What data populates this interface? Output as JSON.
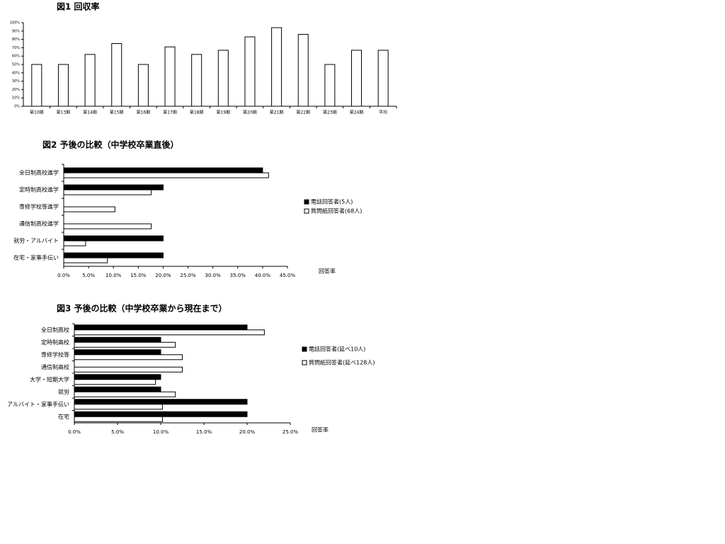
{
  "chart_data": [
    {
      "type": "bar",
      "title": "図1 回収率",
      "categories": [
        "第10期",
        "第13期",
        "第14期",
        "第15期",
        "第16期",
        "第17期",
        "第18期",
        "第19期",
        "第20期",
        "第21期",
        "第22期",
        "第23期",
        "第24期",
        "平均"
      ],
      "values": [
        50,
        50,
        62,
        75,
        50,
        71,
        62,
        67,
        83,
        94,
        86,
        50,
        67,
        67
      ],
      "color": "#ffffff",
      "ylim": [
        0,
        100
      ],
      "yticks": [
        {
          "value": 0,
          "label": "0%"
        },
        {
          "value": 10,
          "label": "10%"
        },
        {
          "value": 20,
          "label": "20%"
        },
        {
          "value": 30,
          "label": "30%"
        },
        {
          "value": 40,
          "label": "40%"
        },
        {
          "value": 50,
          "label": "50%"
        },
        {
          "value": 60,
          "label": "60%"
        },
        {
          "value": 70,
          "label": "70%"
        },
        {
          "value": 80,
          "label": "80%"
        },
        {
          "value": 90,
          "label": "90%"
        },
        {
          "value": 100,
          "label": "100%"
        }
      ]
    },
    {
      "type": "barh",
      "title": "図2 予後の比較（中学校卒業直後）",
      "categories": [
        "全日制高校進学",
        "定時制高校進学",
        "専修学校等進学",
        "通信制高校進学",
        "就労・アルバイト",
        "在宅・家事手伝い"
      ],
      "series": [
        {
          "name": "電話回答者(5人)",
          "color": "#000000",
          "values": [
            40,
            20,
            0,
            0,
            20,
            20
          ]
        },
        {
          "name": "質問紙回答者(68人)",
          "color": "#ffffff",
          "values": [
            41.2,
            17.6,
            10.3,
            17.6,
            4.4,
            8.8
          ]
        }
      ],
      "x_label": "回答率",
      "xlim": [
        0,
        45
      ],
      "xticks": [
        {
          "value": 0,
          "label": "0.0%"
        },
        {
          "value": 5,
          "label": "5.0%"
        },
        {
          "value": 10,
          "label": "10.0%"
        },
        {
          "value": 15,
          "label": "15.0%"
        },
        {
          "value": 20,
          "label": "20.0%"
        },
        {
          "value": 25,
          "label": "25.0%"
        },
        {
          "value": 30,
          "label": "30.0%"
        },
        {
          "value": 35,
          "label": "35.0%"
        },
        {
          "value": 40,
          "label": "40.0%"
        },
        {
          "value": 45,
          "label": "45.0%"
        }
      ]
    },
    {
      "type": "barh",
      "title": "図3 予後の比較（中学校卒業から現在まで）",
      "categories": [
        "全日制高校",
        "定時制高校",
        "専修学校等",
        "通信制高校",
        "大学・短期大学",
        "就労",
        "アルバイト・家事手伝い",
        "在宅"
      ],
      "series": [
        {
          "name": "電話回答者(延べ10人)",
          "color": "#000000",
          "values": [
            20,
            10,
            10,
            0,
            10,
            10,
            20,
            20
          ]
        },
        {
          "name": "質問紙回答者(延べ128人)",
          "color": "#ffffff",
          "values": [
            22.0,
            11.7,
            12.5,
            12.5,
            9.4,
            11.7,
            10.2,
            10.2
          ]
        }
      ],
      "x_label": "回答率",
      "xlim": [
        0,
        25
      ],
      "xticks": [
        {
          "value": 0,
          "label": "0.0%"
        },
        {
          "value": 5,
          "label": "5.0%"
        },
        {
          "value": 10,
          "label": "10.0%"
        },
        {
          "value": 15,
          "label": "15.0%"
        },
        {
          "value": 20,
          "label": "20.0%"
        },
        {
          "value": 25,
          "label": "25.0%"
        }
      ]
    }
  ]
}
